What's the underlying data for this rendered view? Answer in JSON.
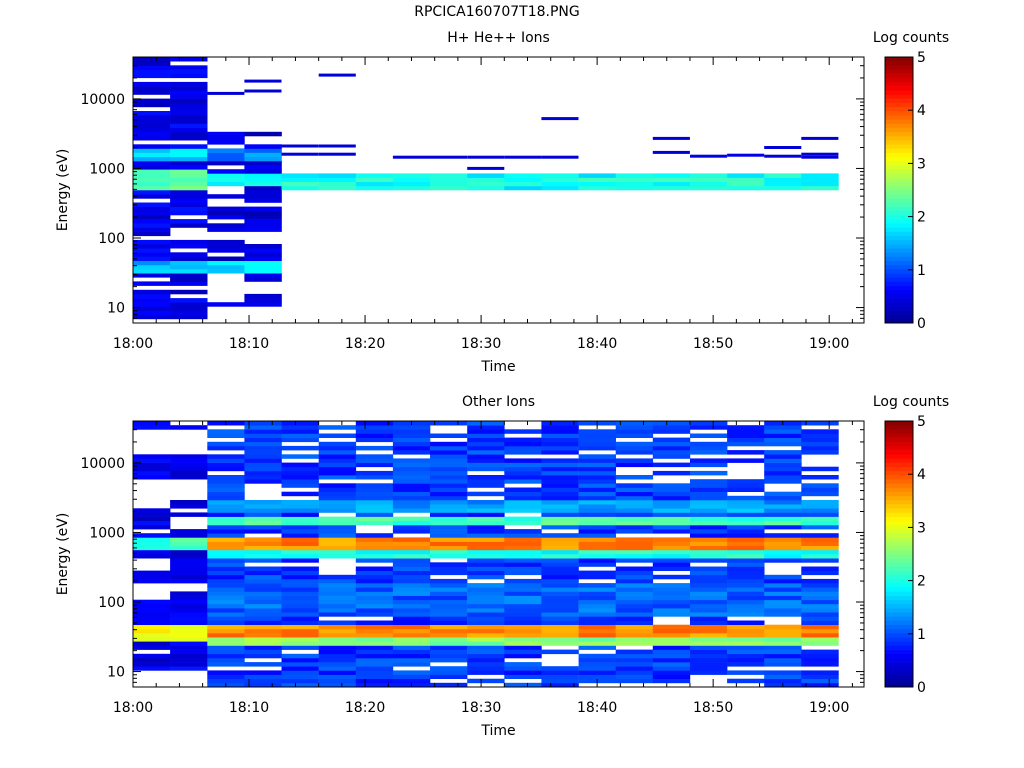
{
  "figure": {
    "title": "RPCICA160707T18.PNG"
  },
  "colors": {
    "colormap": [
      "#00008f",
      "#0000ff",
      "#0080ff",
      "#00ffff",
      "#80ff80",
      "#ffff00",
      "#ff8000",
      "#ff0000",
      "#800000"
    ],
    "background": "#ffffff",
    "frame": "#000000"
  },
  "chart_data": [
    {
      "type": "heatmap",
      "title": "H+ He++ Ions",
      "xlabel": "Time",
      "ylabel": "Energy (eV)",
      "x_tick_labels": [
        "18:00",
        "18:10",
        "18:20",
        "18:30",
        "18:40",
        "18:50",
        "19:00"
      ],
      "x_tick_minutes": [
        0,
        10,
        20,
        30,
        40,
        50,
        60
      ],
      "xlim_minutes": [
        0,
        63
      ],
      "y_scale": "log",
      "ylim": [
        6,
        40000
      ],
      "y_tick_labels": [
        "10",
        "100",
        "1000",
        "10000"
      ],
      "y_tick_values": [
        10,
        100,
        1000,
        10000
      ],
      "colorbar": {
        "label": "Log counts",
        "range": [
          0,
          5
        ],
        "tick_labels": [
          "0",
          "1",
          "2",
          "3",
          "4",
          "5"
        ]
      },
      "time_bin_edges_minutes": [
        0,
        3.2,
        6.4,
        9.6,
        12.8,
        16,
        19.2,
        22.4,
        25.6,
        28.8,
        32,
        35.2,
        38.4,
        41.6,
        44.8,
        48,
        51.2,
        54.4,
        57.6,
        60.8
      ],
      "profiles": [
        {
          "from_bin": 0,
          "to_bin": 1,
          "ranges": [
            [
              6,
              40000,
              0.5
            ],
            [
              500,
              1000,
              2.3
            ],
            [
              1200,
              2000,
              1.6
            ],
            [
              30,
              45,
              1.5
            ]
          ],
          "gaps": [
            [
              18,
              22
            ],
            [
              100,
              110
            ],
            [
              2200,
              2600
            ],
            [
              280,
              300
            ]
          ]
        },
        {
          "from_bin": 2,
          "to_bin": 3,
          "ranges": [
            [
              10,
              3200,
              0.4
            ],
            [
              550,
              900,
              1.9
            ],
            [
              1200,
              2000,
              1.3
            ],
            [
              30,
              45,
              1.8
            ]
          ],
          "gaps": [
            [
              16,
              25
            ],
            [
              100,
              120
            ],
            [
              300,
              330
            ]
          ]
        },
        {
          "from_bin": 4,
          "to_bin": 18,
          "ranges": [
            [
              520,
              850,
              1.9
            ],
            [
              560,
              720,
              2.0
            ]
          ],
          "gaps": []
        }
      ],
      "lines": [
        {
          "bin": 1,
          "e": 28000,
          "z": 0.5
        },
        {
          "bin": 2,
          "e": 12000,
          "z": 0.4
        },
        {
          "bin": 3,
          "e": 18000,
          "z": 0.4
        },
        {
          "bin": 3,
          "e": 13000,
          "z": 0.4
        },
        {
          "bin": 5,
          "e": 22000,
          "z": 0.4
        },
        {
          "bin": 4,
          "e": 2100,
          "z": 0.4
        },
        {
          "bin": 5,
          "e": 2100,
          "z": 0.4
        },
        {
          "bin": 4,
          "e": 1600,
          "z": 0.4
        },
        {
          "bin": 5,
          "e": 1600,
          "z": 0.4
        },
        {
          "bin": 7,
          "e": 1450,
          "z": 0.4
        },
        {
          "bin": 8,
          "e": 1450,
          "z": 0.4
        },
        {
          "bin": 9,
          "e": 1450,
          "z": 0.4
        },
        {
          "bin": 10,
          "e": 1450,
          "z": 0.4
        },
        {
          "bin": 11,
          "e": 1450,
          "z": 0.4
        },
        {
          "bin": 9,
          "e": 1000,
          "z": 0.4
        },
        {
          "bin": 11,
          "e": 5200,
          "z": 0.4
        },
        {
          "bin": 14,
          "e": 2700,
          "z": 0.4
        },
        {
          "bin": 14,
          "e": 1700,
          "z": 0.4
        },
        {
          "bin": 15,
          "e": 1500,
          "z": 0.5
        },
        {
          "bin": 16,
          "e": 1550,
          "z": 0.5
        },
        {
          "bin": 17,
          "e": 2000,
          "z": 0.4
        },
        {
          "bin": 17,
          "e": 1500,
          "z": 0.4
        },
        {
          "bin": 18,
          "e": 1450,
          "z": 0.4
        },
        {
          "bin": 18,
          "e": 2700,
          "z": 0.4
        },
        {
          "bin": 18,
          "e": 1600,
          "z": 0.4
        }
      ]
    },
    {
      "type": "heatmap",
      "title": "Other Ions",
      "xlabel": "Time",
      "ylabel": "Energy (eV)",
      "x_tick_labels": [
        "18:00",
        "18:10",
        "18:20",
        "18:30",
        "18:40",
        "18:50",
        "19:00"
      ],
      "x_tick_minutes": [
        0,
        10,
        20,
        30,
        40,
        50,
        60
      ],
      "xlim_minutes": [
        0,
        63
      ],
      "y_scale": "log",
      "ylim": [
        6,
        40000
      ],
      "y_tick_labels": [
        "10",
        "100",
        "1000",
        "10000"
      ],
      "y_tick_values": [
        10,
        100,
        1000,
        10000
      ],
      "colorbar": {
        "label": "Log counts",
        "range": [
          0,
          5
        ],
        "tick_labels": [
          "0",
          "1",
          "2",
          "3",
          "4",
          "5"
        ]
      },
      "time_bin_edges_minutes": [
        0,
        3.2,
        6.4,
        9.6,
        12.8,
        16,
        19.2,
        22.4,
        25.6,
        28.8,
        32,
        35.2,
        38.4,
        41.6,
        44.8,
        48,
        51.2,
        54.4,
        57.6,
        60.8
      ],
      "profiles": [
        {
          "from_bin": 0,
          "to_bin": 1,
          "ranges": [
            [
              10,
              40000,
              0.5
            ],
            [
              600,
              900,
              2.2
            ],
            [
              28,
              45,
              3.2
            ]
          ],
          "gaps": [
            [
              6,
              10
            ],
            [
              3000,
              6000
            ],
            [
              13000,
              30000
            ],
            [
              150,
              200
            ]
          ]
        },
        {
          "from_bin": 2,
          "to_bin": 18,
          "ranges": [
            [
              6,
              40000,
              0.9
            ],
            [
              30,
              48,
              3.7
            ],
            [
              24,
              30,
              2.5
            ],
            [
              400,
              560,
              2.0
            ],
            [
              560,
              900,
              3.7
            ],
            [
              1200,
              1800,
              2.2
            ],
            [
              2000,
              3000,
              1.4
            ],
            [
              60,
              200,
              1.1
            ]
          ],
          "gaps": []
        }
      ],
      "lines": []
    }
  ]
}
